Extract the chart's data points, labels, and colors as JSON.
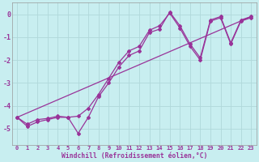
{
  "title": "",
  "xlabel": "Windchill (Refroidissement éolien,°C)",
  "ylabel": "",
  "bg_color": "#c8eef0",
  "grid_color": "#b0d8da",
  "line_color": "#993399",
  "marker": "D",
  "markersize": 2.0,
  "linewidth": 0.9,
  "xlim": [
    -0.5,
    23.5
  ],
  "ylim": [
    -5.7,
    0.5
  ],
  "yticks": [
    0,
    -1,
    -2,
    -3,
    -4,
    -5
  ],
  "xticks": [
    0,
    1,
    2,
    3,
    4,
    5,
    6,
    7,
    8,
    9,
    10,
    11,
    12,
    13,
    14,
    15,
    16,
    17,
    18,
    19,
    20,
    21,
    22,
    23
  ],
  "series1_x": [
    0,
    1,
    2,
    3,
    4,
    5,
    6,
    7,
    8,
    9,
    10,
    11,
    12,
    13,
    14,
    15,
    16,
    17,
    18,
    19,
    20,
    21,
    22,
    23
  ],
  "series1_y": [
    -4.5,
    -4.9,
    -4.7,
    -4.6,
    -4.5,
    -4.5,
    -5.2,
    -4.5,
    -3.6,
    -3.0,
    -2.3,
    -1.8,
    -1.6,
    -0.8,
    -0.65,
    0.1,
    -0.5,
    -1.3,
    -1.9,
    -0.25,
    -0.1,
    -1.25,
    -0.25,
    -0.1
  ],
  "series2_x": [
    0,
    1,
    2,
    3,
    4,
    5,
    6,
    7,
    8,
    9,
    10,
    11,
    12,
    13,
    14,
    15,
    16,
    17,
    18,
    19,
    20,
    21,
    22,
    23
  ],
  "series2_y": [
    -4.5,
    -4.8,
    -4.6,
    -4.55,
    -4.45,
    -4.5,
    -4.45,
    -4.1,
    -3.5,
    -2.8,
    -2.1,
    -1.6,
    -1.4,
    -0.7,
    -0.5,
    0.05,
    -0.6,
    -1.4,
    -2.0,
    -0.3,
    -0.15,
    -1.3,
    -0.3,
    -0.15
  ],
  "series3_x": [
    0,
    23
  ],
  "series3_y": [
    -4.5,
    -0.1
  ]
}
